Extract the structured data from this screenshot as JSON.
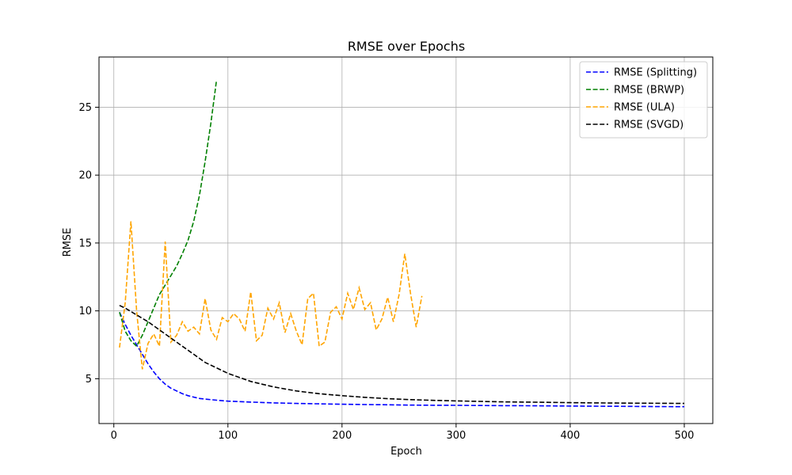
{
  "chart_data": {
    "type": "line",
    "title": "RMSE over Epochs",
    "xlabel": "Epoch",
    "ylabel": "RMSE",
    "xlim": [
      -13,
      525
    ],
    "ylim": [
      1.7,
      28.7
    ],
    "xticks": [
      0,
      100,
      200,
      300,
      400,
      500
    ],
    "yticks": [
      5,
      10,
      15,
      20,
      25
    ],
    "grid": true,
    "legend_position": "top-right",
    "series": [
      {
        "name": "RMSE (Splitting)",
        "color": "#0000ff",
        "x": [
          5,
          10,
          15,
          20,
          25,
          30,
          35,
          40,
          45,
          50,
          55,
          60,
          65,
          70,
          75,
          80,
          90,
          100,
          120,
          140,
          160,
          180,
          200,
          220,
          240,
          260,
          280,
          300,
          320,
          340,
          360,
          380,
          400,
          420,
          440,
          460,
          480,
          500
        ],
        "y": [
          9.9,
          9.0,
          8.2,
          7.5,
          6.8,
          6.1,
          5.5,
          5.0,
          4.6,
          4.3,
          4.1,
          3.9,
          3.75,
          3.65,
          3.55,
          3.5,
          3.42,
          3.35,
          3.28,
          3.22,
          3.18,
          3.15,
          3.12,
          3.1,
          3.08,
          3.06,
          3.05,
          3.04,
          3.03,
          3.02,
          3.01,
          3.0,
          2.99,
          2.98,
          2.97,
          2.96,
          2.95,
          2.94
        ]
      },
      {
        "name": "RMSE (BRWP)",
        "color": "#008000",
        "x": [
          5,
          10,
          15,
          20,
          25,
          30,
          35,
          40,
          45,
          50,
          55,
          60,
          65,
          70,
          75,
          80,
          85,
          90
        ],
        "y": [
          9.9,
          8.5,
          7.8,
          7.4,
          8.2,
          9.2,
          10.2,
          11.2,
          11.9,
          12.6,
          13.3,
          14.2,
          15.2,
          16.6,
          18.5,
          21.0,
          23.8,
          27.0
        ]
      },
      {
        "name": "RMSE (ULA)",
        "color": "#ffa500",
        "x": [
          5,
          10,
          15,
          20,
          25,
          30,
          35,
          40,
          45,
          50,
          55,
          60,
          65,
          70,
          75,
          80,
          85,
          90,
          95,
          100,
          105,
          110,
          115,
          120,
          125,
          130,
          135,
          140,
          145,
          150,
          155,
          160,
          165,
          170,
          175,
          180,
          185,
          190,
          195,
          200,
          205,
          210,
          215,
          220,
          225,
          230,
          235,
          240,
          245,
          250,
          255,
          260,
          265,
          270
        ],
        "y": [
          7.3,
          10.6,
          16.6,
          10.0,
          5.7,
          7.6,
          8.3,
          7.4,
          15.1,
          7.7,
          8.2,
          9.2,
          8.5,
          8.8,
          8.3,
          10.9,
          8.6,
          7.9,
          9.5,
          9.2,
          9.8,
          9.4,
          8.5,
          11.4,
          7.8,
          8.2,
          10.2,
          9.4,
          10.6,
          8.4,
          9.8,
          8.5,
          7.5,
          10.9,
          11.3,
          7.4,
          7.7,
          9.9,
          10.3,
          9.4,
          11.3,
          10.1,
          11.7,
          10.1,
          10.6,
          8.6,
          9.4,
          11.0,
          9.2,
          11.2,
          14.2,
          11.3,
          8.8,
          11.1
        ]
      },
      {
        "name": "RMSE (SVGD)",
        "color": "#000000",
        "x": [
          5,
          10,
          20,
          30,
          40,
          50,
          60,
          70,
          80,
          90,
          100,
          110,
          120,
          130,
          140,
          150,
          160,
          170,
          180,
          190,
          200,
          220,
          240,
          260,
          280,
          300,
          320,
          340,
          360,
          380,
          400,
          420,
          440,
          460,
          480,
          500
        ],
        "y": [
          10.4,
          10.2,
          9.7,
          9.2,
          8.6,
          8.0,
          7.4,
          6.8,
          6.2,
          5.8,
          5.4,
          5.1,
          4.8,
          4.6,
          4.4,
          4.25,
          4.1,
          4.0,
          3.9,
          3.82,
          3.75,
          3.63,
          3.53,
          3.46,
          3.41,
          3.37,
          3.33,
          3.3,
          3.28,
          3.26,
          3.24,
          3.22,
          3.21,
          3.2,
          3.19,
          3.18
        ]
      }
    ]
  }
}
